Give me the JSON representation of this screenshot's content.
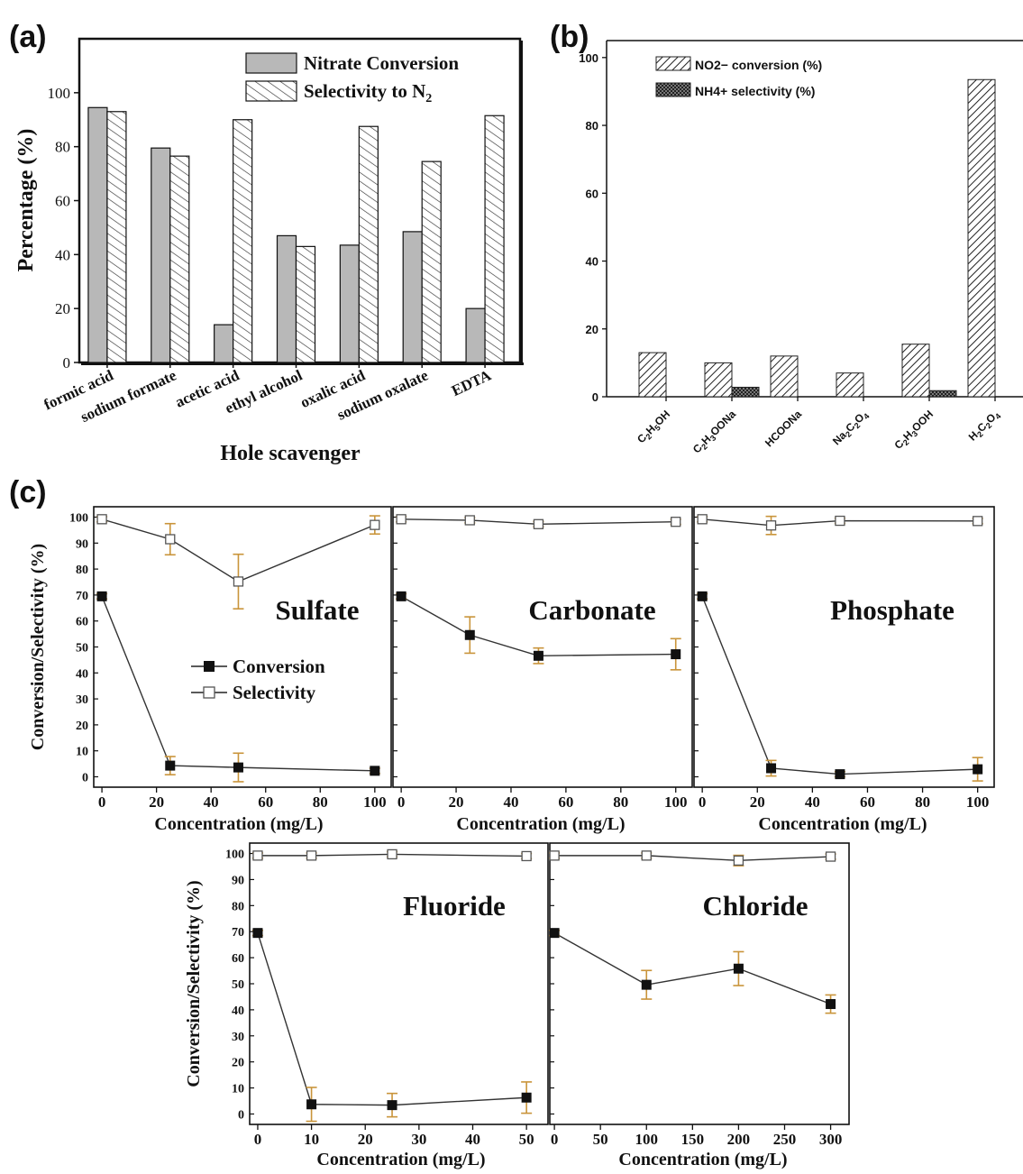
{
  "chart_data": [
    {
      "panel": "(a)",
      "type": "bar",
      "xlabel": "Hole scavenger",
      "ylabel": "Percentage (%)",
      "ylim": [
        0,
        120
      ],
      "yticks": [
        "0",
        "20",
        "40",
        "60",
        "80",
        "100"
      ],
      "categories": [
        "formic acid",
        "sodium formate",
        "acetic acid",
        "ethyl alcohol",
        "oxalic acid",
        "sodium oxalate",
        "EDTA"
      ],
      "legend": [
        "Nitrate Conversion",
        "Selectivity to N"
      ],
      "legend_subscript": "2",
      "legend_position": "top-right",
      "series": [
        {
          "name": "Nitrate Conversion",
          "fill": "solid-gray",
          "values": [
            94.5,
            79.5,
            14,
            47,
            43.5,
            48.5,
            20
          ]
        },
        {
          "name": "Selectivity to N2",
          "fill": "hatched",
          "values": [
            93,
            76.5,
            90,
            43,
            87.5,
            74.5,
            91.5
          ]
        }
      ]
    },
    {
      "panel": "(b)",
      "type": "bar",
      "ylim": [
        0,
        105
      ],
      "yticks": [
        "0",
        "20",
        "40",
        "60",
        "80",
        "100"
      ],
      "categories": [
        "C2H5OH",
        "C2H3OONa",
        "HCOONa",
        "Na2C2O4",
        "C2H3OOH",
        "H2C2O4"
      ],
      "legend": [
        "NO2− conversion (%)",
        "NH4+ selectivity (%)"
      ],
      "legend_position": "top-left",
      "series": [
        {
          "name": "NO2− conversion (%)",
          "fill": "hatched",
          "values": [
            13,
            10,
            12,
            7,
            15.5,
            93.5
          ]
        },
        {
          "name": "NH4+ selectivity (%)",
          "fill": "cross-hatched",
          "values": [
            0,
            2.8,
            0,
            0,
            1.8,
            0
          ]
        }
      ]
    },
    {
      "panel": "(c)",
      "type": "line",
      "ylabel": "Conversion/Selectivity (%)",
      "xlabel": "Concentration (mg/L)",
      "yticks": [
        "0",
        "10",
        "20",
        "30",
        "40",
        "50",
        "60",
        "70",
        "80",
        "90",
        "100"
      ],
      "legend": [
        "Conversion",
        "Selectivity"
      ],
      "subplots": [
        {
          "label": "Sulfate",
          "xlim": [
            -3,
            106
          ],
          "xticks": [
            "0",
            "20",
            "40",
            "60",
            "80",
            "100"
          ],
          "x": [
            0,
            25,
            50,
            100
          ],
          "conversion": [
            69.5,
            4.3,
            3.6,
            2.3
          ],
          "conversion_err": [
            1,
            3.5,
            5.5,
            1
          ],
          "selectivity": [
            99.2,
            91.5,
            75.2,
            97
          ],
          "selectivity_err": [
            1,
            6,
            10.5,
            3.5
          ]
        },
        {
          "label": "Carbonate",
          "xlim": [
            -3,
            106
          ],
          "xticks": [
            "0",
            "20",
            "40",
            "60",
            "80",
            "100"
          ],
          "x": [
            0,
            25,
            50,
            100
          ],
          "conversion": [
            69.5,
            54.6,
            46.6,
            47.2
          ],
          "conversion_err": [
            1,
            7,
            3,
            6
          ],
          "selectivity": [
            99.2,
            98.8,
            97.3,
            98.2
          ],
          "selectivity_err": [
            1,
            1,
            1,
            1
          ]
        },
        {
          "label": "Phosphate",
          "xlim": [
            -3,
            106
          ],
          "xticks": [
            "0",
            "20",
            "40",
            "60",
            "80",
            "100"
          ],
          "x": [
            0,
            25,
            50,
            100
          ],
          "conversion": [
            69.5,
            3.3,
            1,
            2.9
          ],
          "conversion_err": [
            1,
            3,
            1,
            4.5
          ],
          "selectivity": [
            99.2,
            96.8,
            98.6,
            98.5
          ],
          "selectivity_err": [
            1,
            3.5,
            1,
            1
          ]
        },
        {
          "label": "Fluoride",
          "xlim": [
            -1.5,
            54
          ],
          "xticks": [
            "0",
            "10",
            "20",
            "30",
            "40",
            "50"
          ],
          "x": [
            0,
            10,
            25,
            50
          ],
          "conversion": [
            69.5,
            3.7,
            3.4,
            6.3
          ],
          "conversion_err": [
            1,
            6.5,
            4.5,
            6
          ],
          "selectivity": [
            99.2,
            99.2,
            99.7,
            99
          ],
          "selectivity_err": [
            1,
            1,
            1,
            1
          ]
        },
        {
          "label": "Chloride",
          "xlim": [
            -5,
            320
          ],
          "xticks": [
            "0",
            "50",
            "100",
            "150",
            "200",
            "250",
            "300"
          ],
          "x": [
            0,
            100,
            200,
            300
          ],
          "conversion": [
            69.5,
            49.6,
            55.8,
            42.2
          ],
          "conversion_err": [
            1,
            5.5,
            6.5,
            3.5
          ],
          "selectivity": [
            99.2,
            99.2,
            97.3,
            98.8
          ],
          "selectivity_err": [
            1,
            1,
            2,
            1
          ]
        }
      ]
    }
  ],
  "colors": {
    "axis": "#111111",
    "bar_fill": "#b8b8b8",
    "marker": "#111111",
    "error_bar": "#c9943a",
    "line": "#333333"
  }
}
